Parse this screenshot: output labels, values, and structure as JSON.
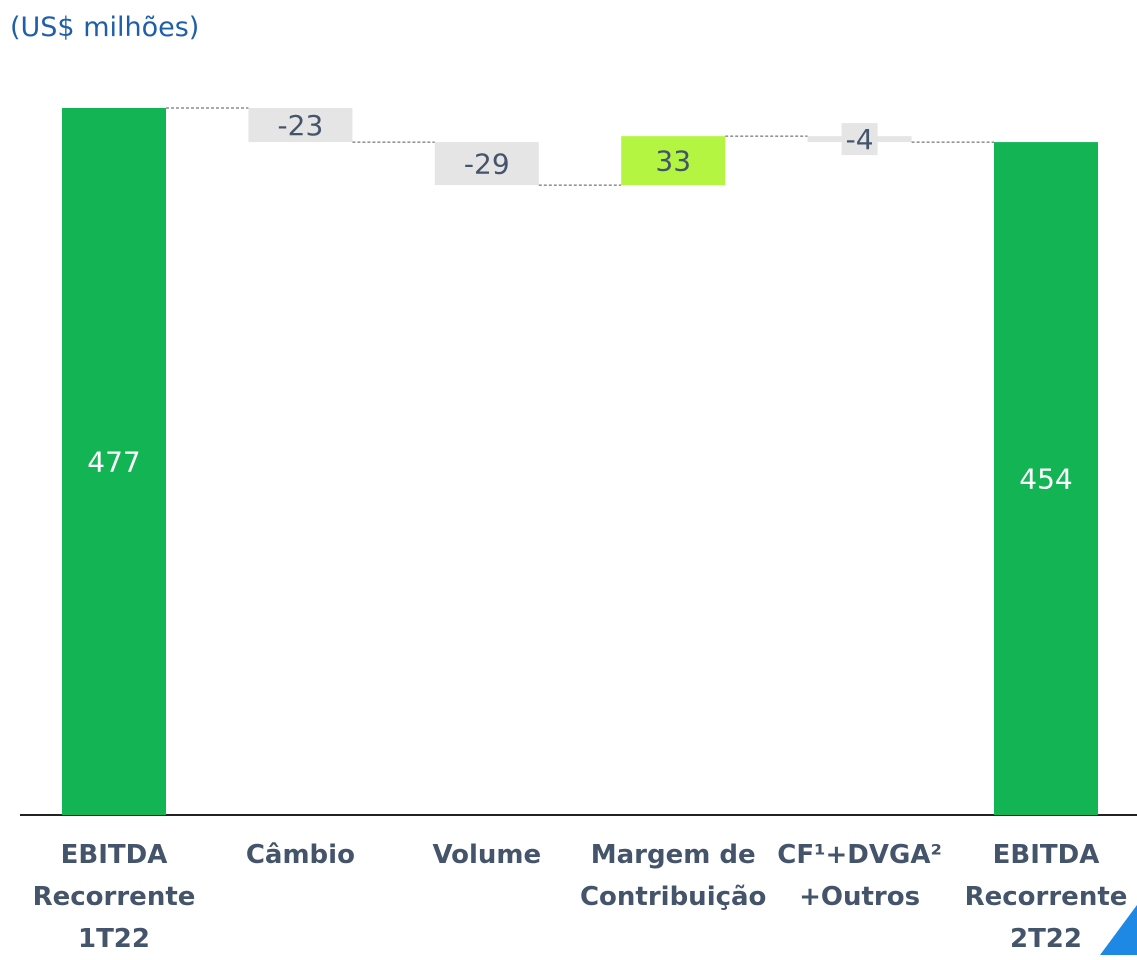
{
  "chart_data": {
    "type": "waterfall",
    "title": "(US$ milhões)",
    "categories": [
      "EBITDA\nRecorrente\n1T22",
      "Câmbio",
      "Volume",
      "Margem de\nContribuição",
      "CF¹+DVGA²\n+Outros",
      "EBITDA\nRecorrente\n2T22"
    ],
    "values": [
      477,
      -23,
      -29,
      33,
      -4,
      454
    ],
    "totals": [
      true,
      false,
      false,
      false,
      false,
      true
    ],
    "colors": {
      "total": "#12b454",
      "negative": "#e5e5e5",
      "positive": "#b4f542"
    }
  }
}
